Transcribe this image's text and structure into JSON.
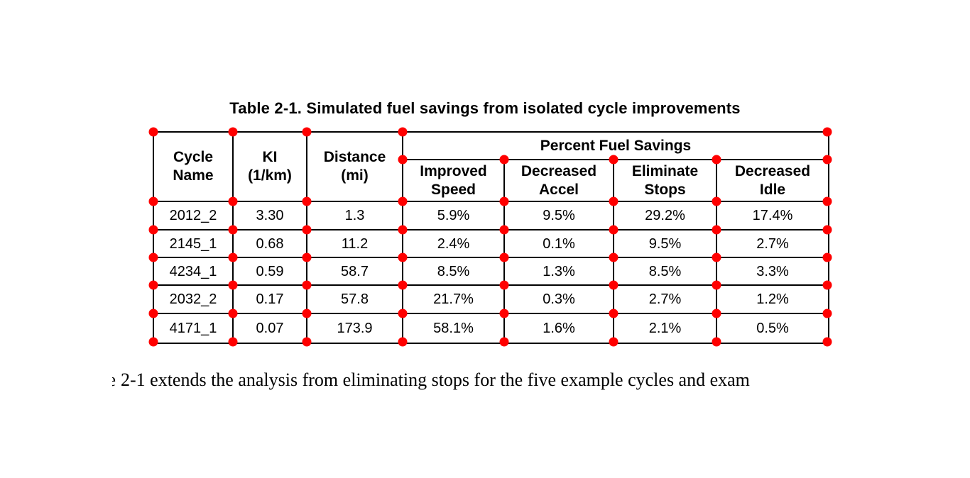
{
  "caption": "Table 2-1. Simulated fuel savings from isolated cycle improvements",
  "table": {
    "headers": {
      "cycle_name": [
        "Cycle",
        "Name"
      ],
      "ki": [
        "KI",
        "(1/km)"
      ],
      "distance": [
        "Distance",
        "(mi)"
      ],
      "percent_fuel_savings": "Percent Fuel Savings",
      "sub": {
        "improved_speed": [
          "Improved",
          "Speed"
        ],
        "decreased_accel": [
          "Decreased",
          "Accel"
        ],
        "eliminate_stops": [
          "Eliminate",
          "Stops"
        ],
        "decreased_idle": [
          "Decreased",
          "Idle"
        ]
      }
    },
    "rows": [
      {
        "cycle_name": "2012_2",
        "ki": "3.30",
        "distance": "1.3",
        "improved_speed": "5.9%",
        "decreased_accel": "9.5%",
        "eliminate_stops": "29.2%",
        "decreased_idle": "17.4%"
      },
      {
        "cycle_name": "2145_1",
        "ki": "0.68",
        "distance": "11.2",
        "improved_speed": "2.4%",
        "decreased_accel": "0.1%",
        "eliminate_stops": "9.5%",
        "decreased_idle": "2.7%"
      },
      {
        "cycle_name": "4234_1",
        "ki": "0.59",
        "distance": "58.7",
        "improved_speed": "8.5%",
        "decreased_accel": "1.3%",
        "eliminate_stops": "8.5%",
        "decreased_idle": "3.3%"
      },
      {
        "cycle_name": "2032_2",
        "ki": "0.17",
        "distance": "57.8",
        "improved_speed": "21.7%",
        "decreased_accel": "0.3%",
        "eliminate_stops": "2.7%",
        "decreased_idle": "1.2%"
      },
      {
        "cycle_name": "4171_1",
        "ki": "0.07",
        "distance": "173.9",
        "improved_speed": "58.1%",
        "decreased_accel": "1.6%",
        "eliminate_stops": "2.1%",
        "decreased_idle": "0.5%"
      }
    ]
  },
  "paragraph": {
    "clipped_leading_word": "Table",
    "visible_text": "2-1 extends the analysis from eliminating stops for the five example cycles and exam"
  },
  "annotations": {
    "marker_color": "#ff0000",
    "marker_name": "cell-corner-marker"
  }
}
